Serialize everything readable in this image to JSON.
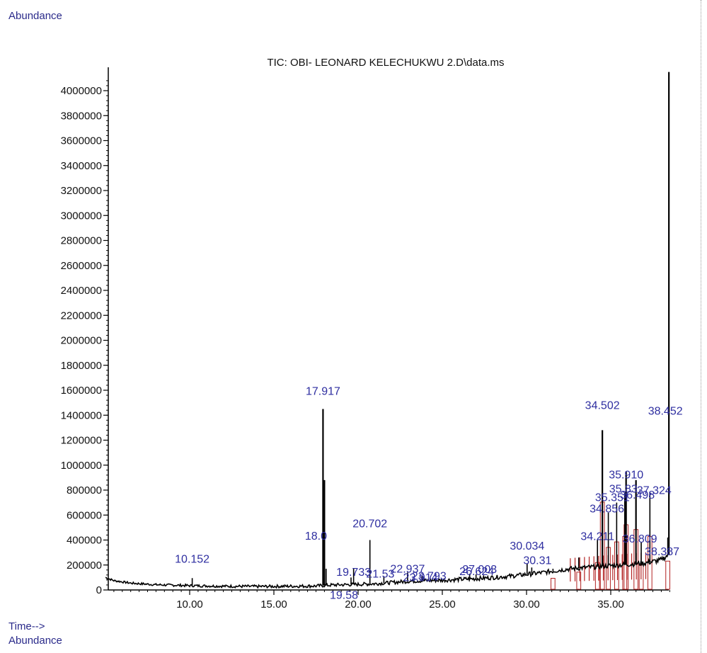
{
  "header": {
    "ylabel": "Abundance"
  },
  "footer": {
    "time_label": "Time-->",
    "abundance_label": "Abundance"
  },
  "colors": {
    "trace": "#000000",
    "integration": "#b22222",
    "label": "#2e2ea0",
    "axis": "#000000"
  },
  "chart_data": {
    "type": "line",
    "title": "TIC: OBI- LEONARD KELECHUKWU 2.D\\data.ms",
    "xlabel": "Time-->",
    "ylabel": "Abundance",
    "xlim": [
      5.0,
      38.7
    ],
    "ylim": [
      0,
      4200000
    ],
    "xticks": [
      10,
      15,
      20,
      25,
      30,
      35
    ],
    "xtick_labels": [
      "10.00",
      "15.00",
      "20.00",
      "25.00",
      "30.00",
      "35.00"
    ],
    "yticks": [
      0,
      200000,
      400000,
      600000,
      800000,
      1000000,
      1200000,
      1400000,
      1600000,
      1800000,
      2000000,
      2200000,
      2400000,
      2600000,
      2800000,
      3000000,
      3200000,
      3400000,
      3600000,
      3800000,
      4000000
    ],
    "ytick_labels": [
      "0",
      "200000",
      "400000",
      "600000",
      "800000",
      "1000000",
      "1200000",
      "1400000",
      "1600000",
      "1800000",
      "2000000",
      "2200000",
      "2400000",
      "2600000",
      "2800000",
      "3000000",
      "3200000",
      "3400000",
      "3600000",
      "3800000",
      "4000000"
    ],
    "baseline": [
      [
        5.0,
        100000
      ],
      [
        5.5,
        75000
      ],
      [
        6.5,
        55000
      ],
      [
        8.0,
        42000
      ],
      [
        10.0,
        35000
      ],
      [
        12.0,
        30000
      ],
      [
        14.0,
        28000
      ],
      [
        16.0,
        30000
      ],
      [
        17.5,
        32000
      ],
      [
        18.5,
        40000
      ],
      [
        20.0,
        45000
      ],
      [
        21.0,
        50000
      ],
      [
        22.0,
        60000
      ],
      [
        23.0,
        70000
      ],
      [
        24.0,
        75000
      ],
      [
        25.0,
        78000
      ],
      [
        26.0,
        85000
      ],
      [
        27.0,
        90000
      ],
      [
        28.0,
        100000
      ],
      [
        29.0,
        110000
      ],
      [
        30.0,
        125000
      ],
      [
        31.0,
        140000
      ],
      [
        32.0,
        160000
      ],
      [
        33.0,
        175000
      ],
      [
        34.0,
        185000
      ],
      [
        35.0,
        195000
      ],
      [
        36.0,
        205000
      ],
      [
        37.0,
        215000
      ],
      [
        38.0,
        240000
      ],
      [
        38.4,
        280000
      ]
    ],
    "peaks": [
      {
        "x": 10.152,
        "y": 95000,
        "label": "10.152"
      },
      {
        "x": 17.917,
        "y": 1450000,
        "label": "17.917"
      },
      {
        "x": 18.0,
        "y": 880000,
        "label": "18.0"
      },
      {
        "x": 18.1,
        "y": 170000,
        "label": ""
      },
      {
        "x": 19.58,
        "y": 100000,
        "label": "19.58"
      },
      {
        "x": 19.733,
        "y": 170000,
        "label": "19.733"
      },
      {
        "x": 20.702,
        "y": 400000,
        "label": "20.702"
      },
      {
        "x": 21.53,
        "y": 110000,
        "label": "21.53"
      },
      {
        "x": 22.937,
        "y": 140000,
        "label": "22.937"
      },
      {
        "x": 23.793,
        "y": 110000,
        "label": "23.793"
      },
      {
        "x": 23.914,
        "y": 100000,
        "label": "23.914"
      },
      {
        "x": 26.624,
        "y": 130000,
        "label": "26.624"
      },
      {
        "x": 27.003,
        "y": 125000,
        "label": "27.003"
      },
      {
        "x": 30.034,
        "y": 210000,
        "label": "30.034"
      },
      {
        "x": 30.31,
        "y": 180000,
        "label": "30.31"
      },
      {
        "x": 31.57,
        "y": 170000,
        "label": ""
      },
      {
        "x": 33.1,
        "y": 260000,
        "label": ""
      },
      {
        "x": 34.211,
        "y": 400000,
        "label": "34.211"
      },
      {
        "x": 34.502,
        "y": 1280000,
        "label": "34.502"
      },
      {
        "x": 34.856,
        "y": 620000,
        "label": "34.856"
      },
      {
        "x": 35.351,
        "y": 700000,
        "label": "35.351"
      },
      {
        "x": 35.83,
        "y": 780000,
        "label": "35.83"
      },
      {
        "x": 35.91,
        "y": 950000,
        "label": "35.910"
      },
      {
        "x": 36.498,
        "y": 880000,
        "label": "36.498"
      },
      {
        "x": 36.809,
        "y": 380000,
        "label": "36.809"
      },
      {
        "x": 37.324,
        "y": 780000,
        "label": "37.324"
      },
      {
        "x": 38.387,
        "y": 420000,
        "label": "38.387"
      },
      {
        "x": 38.452,
        "y": 4150000,
        "label": "38.452"
      }
    ]
  }
}
